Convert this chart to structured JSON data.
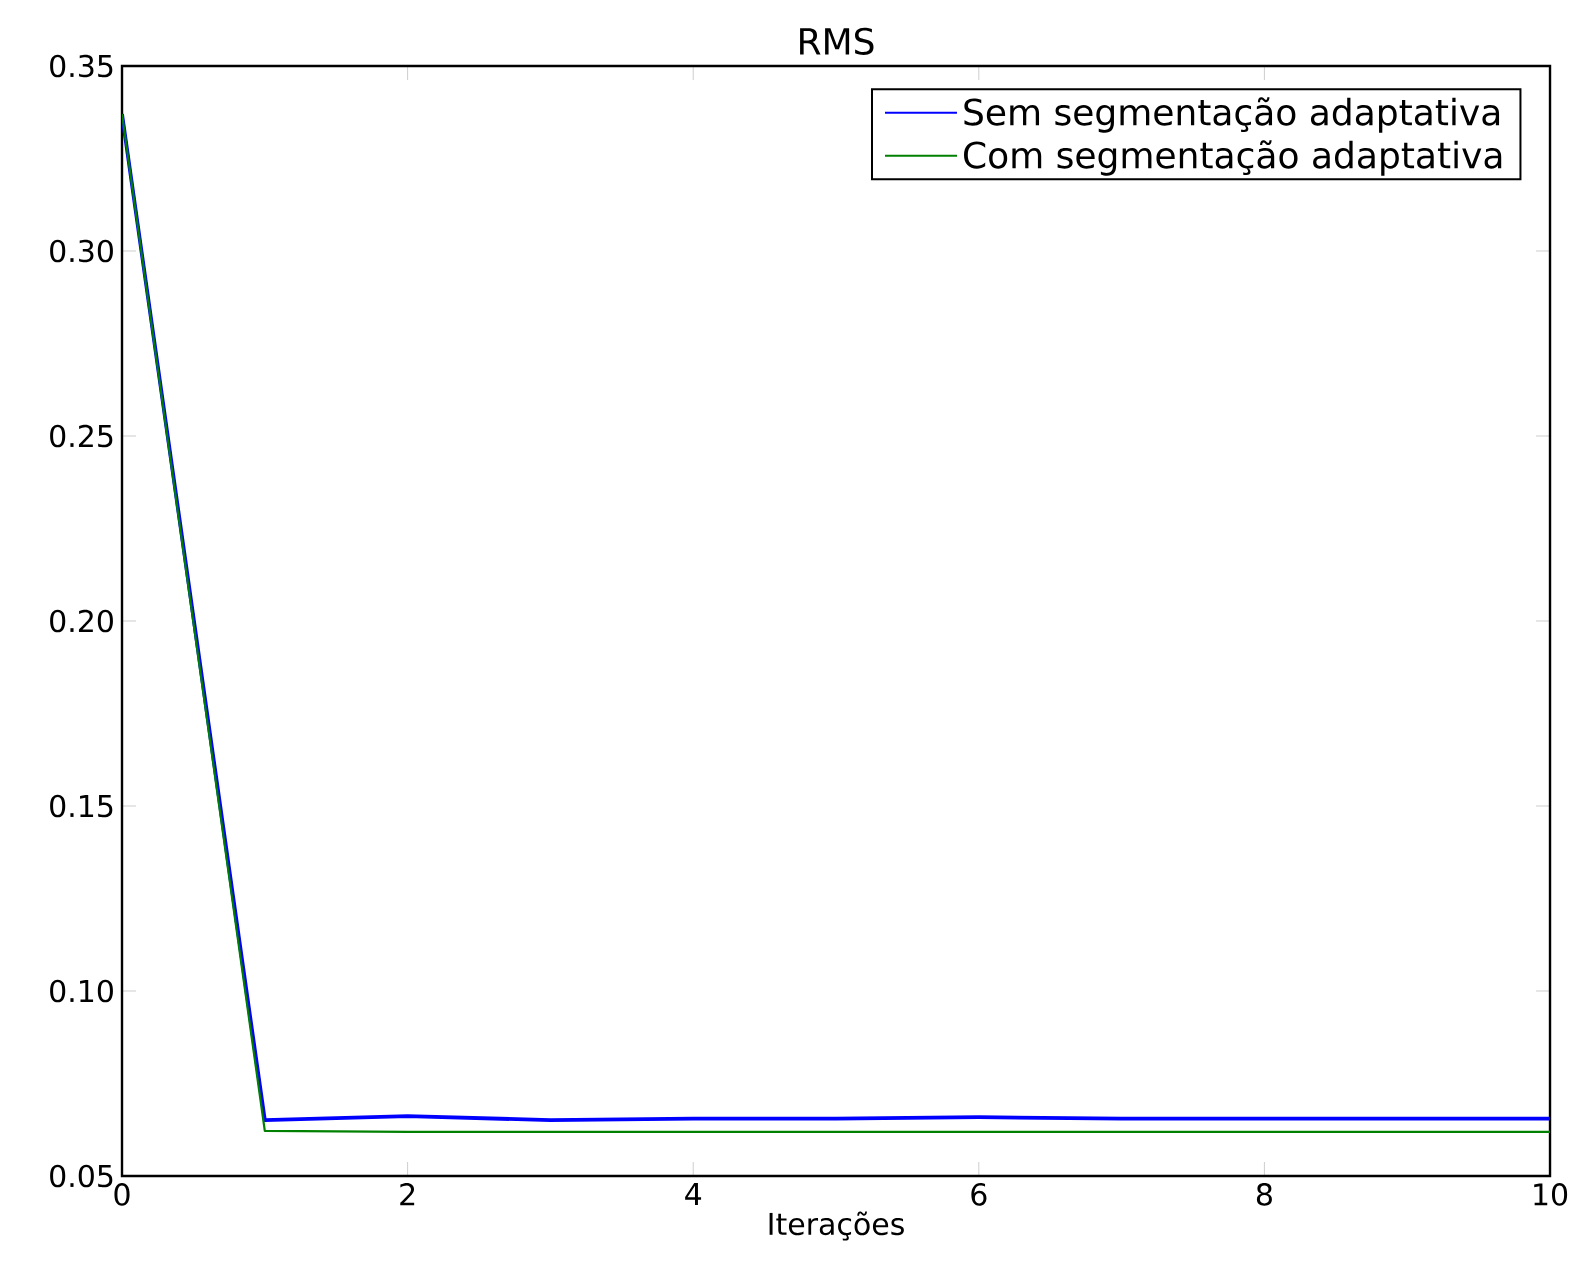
{
  "chart_data": {
    "type": "line",
    "title": "RMS",
    "xlabel": "Iterações",
    "x": [
      0,
      1,
      2,
      3,
      4,
      5,
      6,
      7,
      8,
      9,
      10
    ],
    "series": [
      {
        "name": "Sem segmentação adaptativa",
        "color": "#0000ff",
        "values": [
          0.337,
          0.0651,
          0.0662,
          0.0651,
          0.0655,
          0.0655,
          0.0659,
          0.0655,
          0.0655,
          0.0655,
          0.0655
        ]
      },
      {
        "name": "Com segmentação adaptativa",
        "color": "#008000",
        "values": [
          0.337,
          0.0622,
          0.0619,
          0.0619,
          0.0619,
          0.0619,
          0.0619,
          0.0619,
          0.0619,
          0.0619,
          0.0619
        ]
      }
    ],
    "xlim": [
      0,
      10
    ],
    "ylim": [
      0.05,
      0.35
    ],
    "xticks": [
      0,
      2,
      4,
      6,
      8,
      10
    ],
    "yticks": [
      {
        "value": 0.05,
        "label": "0.05"
      },
      {
        "value": 0.1,
        "label": "0.10"
      },
      {
        "value": 0.15,
        "label": "0.15"
      },
      {
        "value": 0.2,
        "label": "0.20"
      },
      {
        "value": 0.25,
        "label": "0.25"
      },
      {
        "value": 0.3,
        "label": "0.30"
      },
      {
        "value": 0.35,
        "label": "0.35"
      }
    ],
    "legend": "top right",
    "grid": false
  }
}
